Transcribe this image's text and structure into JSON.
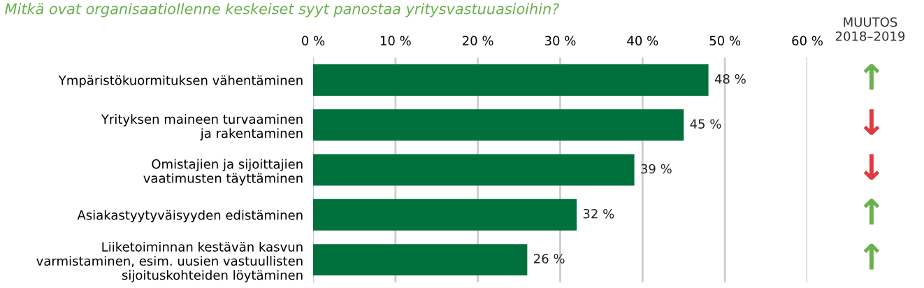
{
  "chart_data": {
    "type": "bar",
    "orientation": "horizontal",
    "title": "Mitkä ovat organisaatiollenne keskeiset syyt panostaa yritysvastuuasioihin?",
    "categories": [
      "Ympäristökuormituksen vähentäminen",
      "Yrityksen maineen turvaaminen\nja rakentaminen",
      "Omistajien ja sijoittajien\nvaatimusten täyttäminen",
      "Asiakastyytyväisyyden edistäminen",
      "Liiketoiminnan kestävän kasvun\nvarmistaminen, esim. uusien vastuullisten\nsijoituskohteiden löytäminen"
    ],
    "values": [
      48,
      45,
      39,
      32,
      26
    ],
    "value_labels": [
      "48 %",
      "45 %",
      "39 %",
      "32 %",
      "26 %"
    ],
    "color": "#00703c",
    "xlim": [
      0,
      60
    ],
    "xticks": [
      {
        "value": 0,
        "label": "0 %"
      },
      {
        "value": 10,
        "label": "10 %"
      },
      {
        "value": 20,
        "label": "20 %"
      },
      {
        "value": 30,
        "label": "30 %"
      },
      {
        "value": 40,
        "label": "40 %"
      },
      {
        "value": 50,
        "label": "50 %"
      },
      {
        "value": 60,
        "label": "60 %"
      }
    ],
    "grid": "x",
    "annotations": [
      "MUUTOS\n2018–2019",
      "↑",
      "↓",
      "↓",
      "↑",
      "↑"
    ]
  }
}
